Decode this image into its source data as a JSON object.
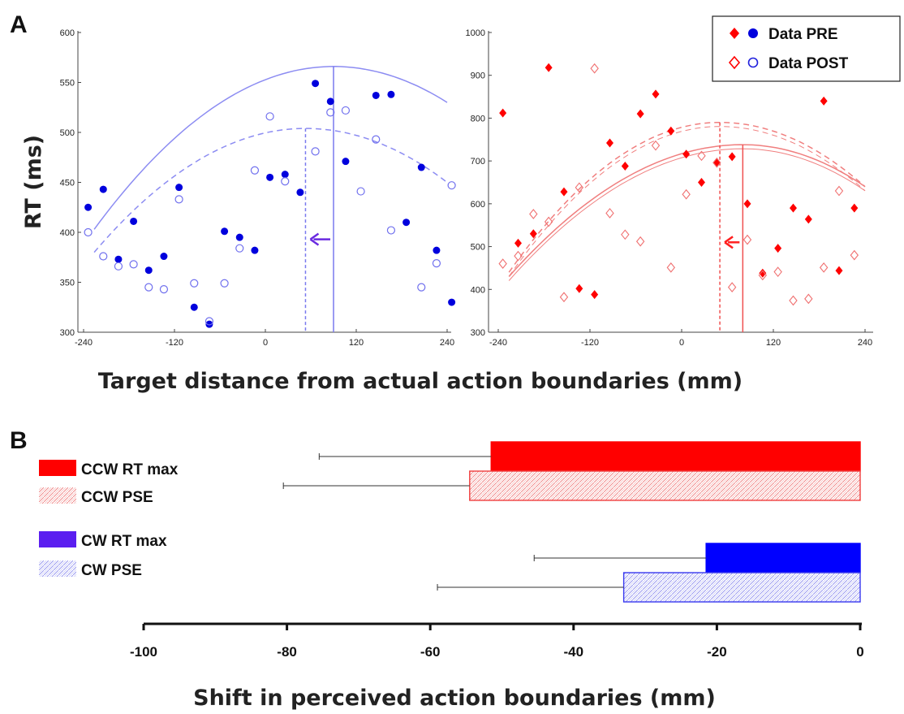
{
  "figure": {
    "panel_a_letter": "A",
    "panel_b_letter": "B",
    "colors": {
      "blue_fill": "#0000dd",
      "blue_open": "#7070ee",
      "blue_line": "#8c8cf2",
      "blue_dash": "#5a5ae8",
      "red_fill": "#ff0000",
      "red_open": "#f07070",
      "red_line": "#f07f7f",
      "bar_red": "#ff0000",
      "bar_blue": "#0000ff",
      "legend_cw_max": "#5b1ef0",
      "arrow_blue": "#6a2ae0",
      "arrow_red": "#ff2020"
    }
  },
  "chart_data": [
    {
      "type": "scatter",
      "id": "left",
      "title": "",
      "ylabel": "RT (ms)",
      "xlabel": "Target distance from actual action boundaries (mm)",
      "xlim": [
        -240,
        240
      ],
      "ylim": [
        300,
        600
      ],
      "xticks": [
        "-240",
        "-120",
        "0",
        "120",
        "240"
      ],
      "yticks": [
        "300",
        "350",
        "400",
        "450",
        "500",
        "550",
        "600"
      ],
      "series": [
        {
          "name": "Data PRE",
          "marker": "filled-circle",
          "points": [
            [
              -234,
              425
            ],
            [
              -214,
              443
            ],
            [
              -194,
              373
            ],
            [
              -174,
              411
            ],
            [
              -154,
              362
            ],
            [
              -134,
              376
            ],
            [
              -114,
              445
            ],
            [
              -94,
              325
            ],
            [
              -74,
              308
            ],
            [
              -54,
              401
            ],
            [
              -34,
              395
            ],
            [
              -14,
              382
            ],
            [
              6,
              455
            ],
            [
              26,
              458
            ],
            [
              46,
              440
            ],
            [
              66,
              549
            ],
            [
              86,
              531
            ],
            [
              106,
              471
            ],
            [
              146,
              537
            ],
            [
              166,
              538
            ],
            [
              186,
              410
            ],
            [
              206,
              465
            ],
            [
              226,
              382
            ],
            [
              246,
              330
            ]
          ]
        },
        {
          "name": "Data POST",
          "marker": "open-circle",
          "points": [
            [
              -234,
              400
            ],
            [
              -214,
              376
            ],
            [
              -194,
              366
            ],
            [
              -174,
              368
            ],
            [
              -154,
              345
            ],
            [
              -134,
              343
            ],
            [
              -114,
              433
            ],
            [
              -94,
              349
            ],
            [
              -74,
              311
            ],
            [
              -54,
              349
            ],
            [
              -34,
              384
            ],
            [
              -14,
              462
            ],
            [
              6,
              516
            ],
            [
              26,
              451
            ],
            [
              66,
              481
            ],
            [
              86,
              520
            ],
            [
              106,
              522
            ],
            [
              126,
              441
            ],
            [
              146,
              493
            ],
            [
              166,
              402
            ],
            [
              206,
              345
            ],
            [
              226,
              369
            ],
            [
              246,
              447
            ]
          ]
        }
      ],
      "fit_pre": {
        "peak_x": 90,
        "peak_y": 566,
        "end_y": 403,
        "right_y": 530
      },
      "fit_post": {
        "peak_x": 53,
        "peak_y": 504,
        "end_y": 380,
        "right_y": 450
      },
      "boundary_pre_x": 90,
      "boundary_post_x": 53,
      "arrow_y": 393
    },
    {
      "type": "scatter",
      "id": "right",
      "title": "",
      "xlim": [
        -240,
        240
      ],
      "ylim": [
        300,
        1000
      ],
      "xticks": [
        "-240",
        "-120",
        "0",
        "120",
        "240"
      ],
      "yticks": [
        "300",
        "400",
        "500",
        "600",
        "700",
        "800",
        "900",
        "1000"
      ],
      "series": [
        {
          "name": "Data PRE",
          "marker": "filled-diamond",
          "points": [
            [
              -234,
              812
            ],
            [
              -214,
              508
            ],
            [
              -194,
              530
            ],
            [
              -174,
              918
            ],
            [
              -154,
              628
            ],
            [
              -134,
              402
            ],
            [
              -114,
              388
            ],
            [
              -94,
              742
            ],
            [
              -74,
              688
            ],
            [
              -54,
              810
            ],
            [
              -34,
              856
            ],
            [
              -14,
              770
            ],
            [
              6,
              716
            ],
            [
              26,
              650
            ],
            [
              46,
              696
            ],
            [
              66,
              710
            ],
            [
              86,
              600
            ],
            [
              106,
              438
            ],
            [
              126,
              496
            ],
            [
              146,
              590
            ],
            [
              166,
              564
            ],
            [
              186,
              840
            ],
            [
              206,
              444
            ],
            [
              226,
              590
            ]
          ]
        },
        {
          "name": "Data POST",
          "marker": "open-diamond",
          "points": [
            [
              -234,
              460
            ],
            [
              -214,
              478
            ],
            [
              -194,
              576
            ],
            [
              -174,
              558
            ],
            [
              -154,
              382
            ],
            [
              -134,
              638
            ],
            [
              -114,
              916
            ],
            [
              -94,
              578
            ],
            [
              -74,
              528
            ],
            [
              -54,
              512
            ],
            [
              -34,
              736
            ],
            [
              -14,
              451
            ],
            [
              6,
              622
            ],
            [
              26,
              712
            ],
            [
              46,
              696
            ],
            [
              66,
              405
            ],
            [
              86,
              516
            ],
            [
              106,
              433
            ],
            [
              126,
              441
            ],
            [
              146,
              374
            ],
            [
              166,
              378
            ],
            [
              186,
              451
            ],
            [
              206,
              630
            ],
            [
              226,
              480
            ]
          ]
        }
      ],
      "fit_pre": {
        "peak_x": 80,
        "peak_y": 738,
        "end_y": 430,
        "right_y": 640
      },
      "fit_post": {
        "peak_x": 50,
        "peak_y": 790,
        "end_y": 440,
        "right_y": 640
      },
      "boundary_pre_x": 80,
      "boundary_post_x": 50,
      "arrow_y": 510
    },
    {
      "type": "bar",
      "id": "shift",
      "orientation": "horizontal",
      "xlabel": "Shift in perceived action boundaries (mm)",
      "xlim": [
        -100,
        0
      ],
      "xticks": [
        "-100",
        "-80",
        "-60",
        "-40",
        "-20",
        "0"
      ],
      "categories": [
        "CCW RT max",
        "CCW PSE",
        "CW RT max",
        "CW PSE"
      ],
      "values": [
        -51.5,
        -54.5,
        -21.5,
        -33
      ],
      "errors": [
        24,
        26,
        24,
        26
      ],
      "styles": [
        "solid-red",
        "hatch-red",
        "solid-blue",
        "hatch-blue"
      ]
    }
  ]
}
